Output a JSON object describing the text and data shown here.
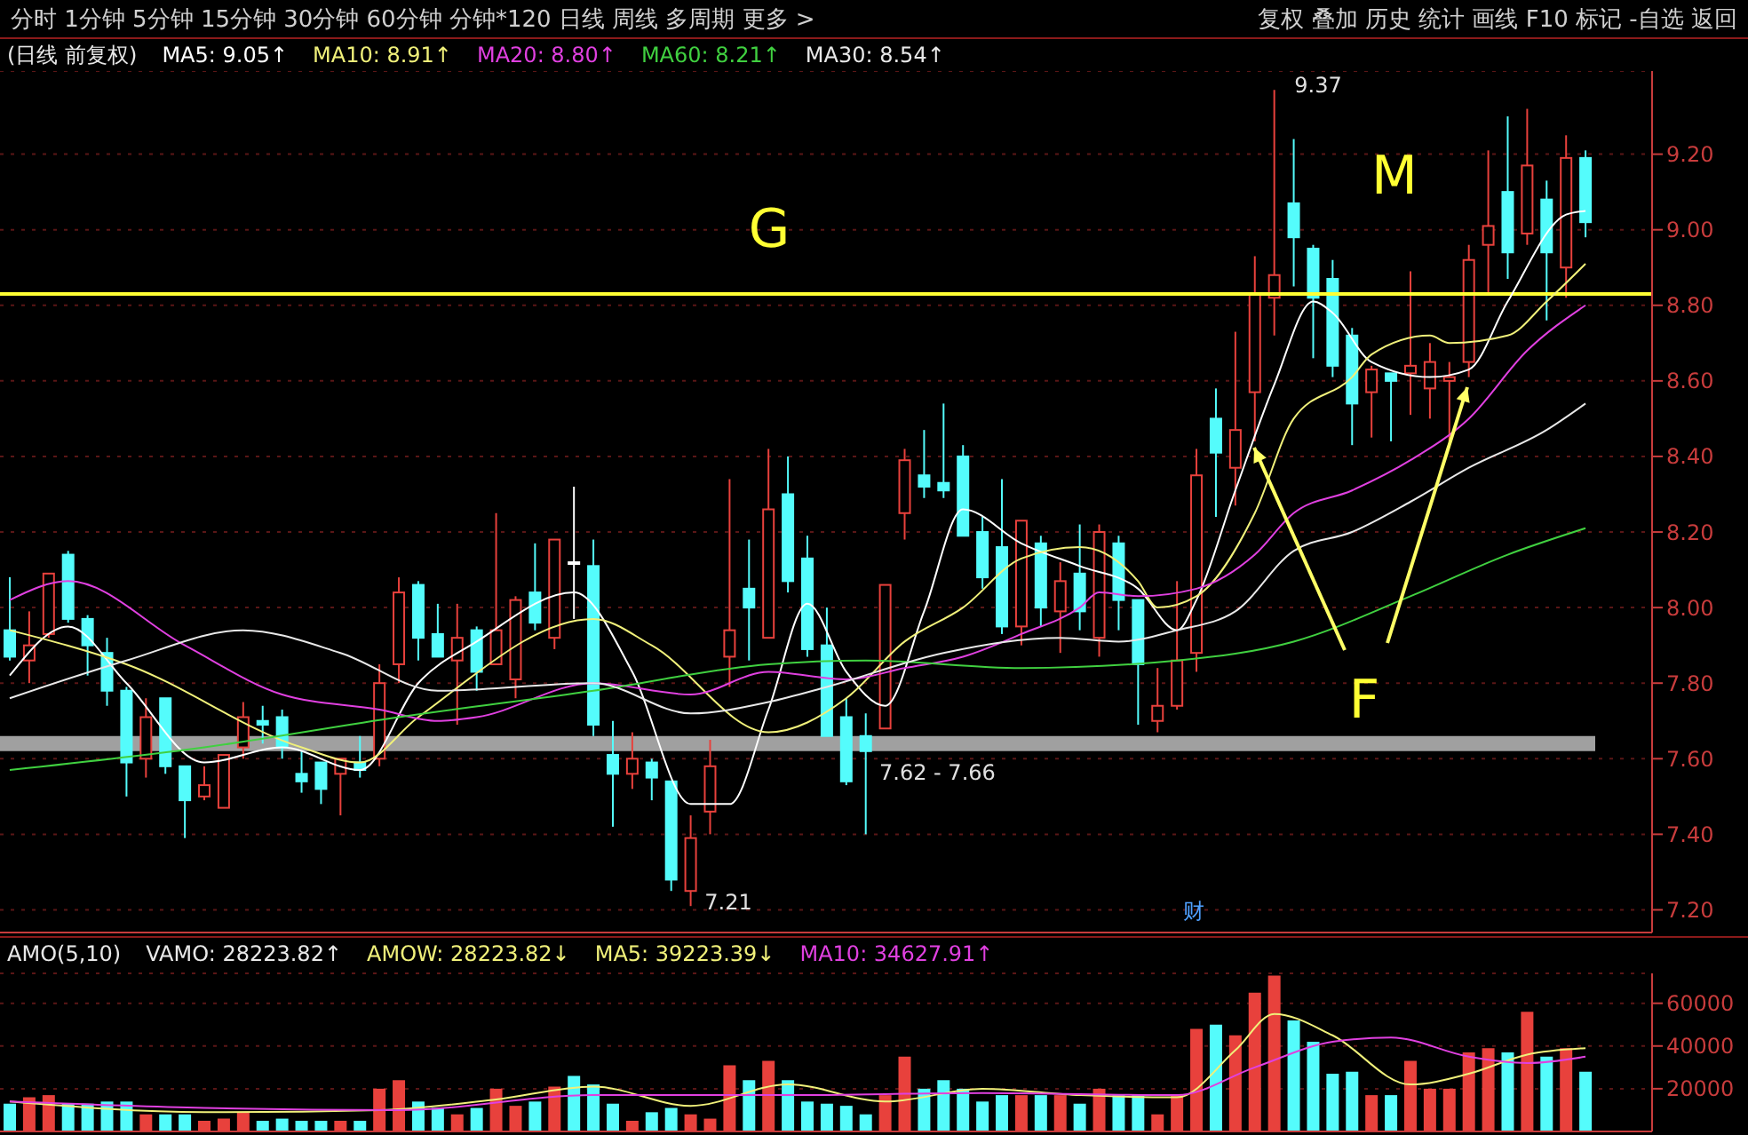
{
  "chart_data": [
    {
      "type": "candlestick",
      "title": "(日线 前复权)",
      "legend": "top left",
      "grid": "y",
      "tick_labels": "y",
      "marker": "none",
      "line_style": "solid",
      "categories": [
        null,
        null,
        null,
        null,
        null,
        null,
        null,
        null,
        null,
        null,
        null,
        null,
        null,
        null,
        null,
        null,
        null,
        null,
        null,
        null,
        null,
        null,
        null,
        null,
        null,
        null,
        null,
        null,
        null,
        null,
        null,
        null,
        null,
        null,
        null,
        null,
        null,
        null,
        null,
        null,
        null,
        null,
        null,
        null,
        null,
        null,
        null,
        null,
        null,
        null,
        null,
        null,
        null,
        null,
        null,
        null,
        null,
        null,
        null,
        null,
        null,
        null,
        null,
        null,
        null,
        null,
        null,
        null,
        null,
        null,
        null,
        null,
        null,
        null,
        null,
        null,
        null,
        null,
        null,
        null,
        null,
        null
      ],
      "ylim": [
        7.14,
        9.42
      ],
      "yticks": [
        {
          "value": 7.2,
          "label": "7.20"
        },
        {
          "value": 7.4,
          "label": "7.40"
        },
        {
          "value": 7.6,
          "label": "7.60"
        },
        {
          "value": 7.8,
          "label": "7.80"
        },
        {
          "value": 8.0,
          "label": "8.00"
        },
        {
          "value": 8.2,
          "label": "8.20"
        },
        {
          "value": 8.4,
          "label": "8.40"
        },
        {
          "value": 8.6,
          "label": "8.60"
        },
        {
          "value": 8.8,
          "label": "8.80"
        },
        {
          "value": 9.0,
          "label": "9.00"
        },
        {
          "value": 9.2,
          "label": "9.20"
        }
      ],
      "colors": [
        "#54fcfc",
        "#e8413c",
        "#e8413c",
        "#54fcfc",
        "#54fcfc",
        "#54fcfc",
        "#54fcfc",
        "#e8413c",
        "#54fcfc",
        "#54fcfc",
        "#e8413c",
        "#e8413c",
        "#e8413c",
        "#54fcfc",
        "#54fcfc",
        "#54fcfc",
        "#54fcfc",
        "#e8413c",
        "#54fcfc",
        "#e8413c",
        "#e8413c",
        "#54fcfc",
        "#54fcfc",
        "#e8413c",
        "#54fcfc",
        "#e8413c",
        "#e8413c",
        "#54fcfc",
        "#e8413c",
        "#ffffff",
        "#54fcfc",
        "#54fcfc",
        "#e8413c",
        "#54fcfc",
        "#54fcfc",
        "#e8413c",
        "#e8413c",
        "#e8413c",
        "#54fcfc",
        "#e8413c",
        "#54fcfc",
        "#54fcfc",
        "#54fcfc",
        "#54fcfc",
        "#54fcfc",
        "#e8413c",
        "#e8413c",
        "#54fcfc",
        "#54fcfc",
        "#54fcfc",
        "#54fcfc",
        "#54fcfc",
        "#e8413c",
        "#54fcfc",
        "#e8413c",
        "#54fcfc",
        "#e8413c",
        "#54fcfc",
        "#54fcfc",
        "#e8413c",
        "#e8413c",
        "#e8413c",
        "#54fcfc",
        "#e8413c",
        "#e8413c",
        "#e8413c",
        "#54fcfc",
        "#54fcfc",
        "#54fcfc",
        "#54fcfc",
        "#e8413c",
        "#54fcfc",
        "#e8413c",
        "#e8413c",
        "#e8413c",
        "#e8413c",
        "#e8413c",
        "#54fcfc",
        "#e8413c",
        "#54fcfc",
        "#e8413c",
        "#54fcfc"
      ],
      "ohlc": [
        [
          7.94,
          8.08,
          7.86,
          7.87
        ],
        [
          7.86,
          7.99,
          7.8,
          7.9
        ],
        [
          7.93,
          8.09,
          7.92,
          8.09
        ],
        [
          8.14,
          8.15,
          7.96,
          7.97
        ],
        [
          7.97,
          7.98,
          7.82,
          7.9
        ],
        [
          7.88,
          7.92,
          7.74,
          7.78
        ],
        [
          7.78,
          7.79,
          7.5,
          7.59
        ],
        [
          7.6,
          7.76,
          7.55,
          7.71
        ],
        [
          7.76,
          7.76,
          7.56,
          7.58
        ],
        [
          7.58,
          7.58,
          7.39,
          7.49
        ],
        [
          7.5,
          7.58,
          7.49,
          7.53
        ],
        [
          7.47,
          7.61,
          7.47,
          7.61
        ],
        [
          7.63,
          7.75,
          7.6,
          7.71
        ],
        [
          7.7,
          7.74,
          7.64,
          7.69
        ],
        [
          7.71,
          7.73,
          7.6,
          7.63
        ],
        [
          7.56,
          7.62,
          7.51,
          7.54
        ],
        [
          7.59,
          7.59,
          7.48,
          7.52
        ],
        [
          7.56,
          7.6,
          7.45,
          7.6
        ],
        [
          7.59,
          7.66,
          7.55,
          7.57
        ],
        [
          7.6,
          7.85,
          7.58,
          7.8
        ],
        [
          7.85,
          8.08,
          7.8,
          8.04
        ],
        [
          8.06,
          8.07,
          7.86,
          7.92
        ],
        [
          7.93,
          8.01,
          7.87,
          7.87
        ],
        [
          7.86,
          8.01,
          7.69,
          7.92
        ],
        [
          7.94,
          7.95,
          7.78,
          7.83
        ],
        [
          7.85,
          8.25,
          7.85,
          7.94
        ],
        [
          7.81,
          8.03,
          7.76,
          8.02
        ],
        [
          8.04,
          8.17,
          7.94,
          7.96
        ],
        [
          7.92,
          8.18,
          7.89,
          8.18
        ],
        [
          8.12,
          8.32,
          7.97,
          8.12
        ],
        [
          8.11,
          8.18,
          7.66,
          7.69
        ],
        [
          7.61,
          7.7,
          7.42,
          7.56
        ],
        [
          7.56,
          7.67,
          7.52,
          7.6
        ],
        [
          7.59,
          7.6,
          7.49,
          7.55
        ],
        [
          7.54,
          7.54,
          7.25,
          7.28
        ],
        [
          7.25,
          7.45,
          7.21,
          7.39
        ],
        [
          7.46,
          7.65,
          7.4,
          7.58
        ],
        [
          7.87,
          8.34,
          7.79,
          7.94
        ],
        [
          8.05,
          8.18,
          7.86,
          8.0
        ],
        [
          7.92,
          8.42,
          7.92,
          8.26
        ],
        [
          8.3,
          8.4,
          8.04,
          8.07
        ],
        [
          8.13,
          8.19,
          7.87,
          7.89
        ],
        [
          7.9,
          8.0,
          7.66,
          7.66
        ],
        [
          7.71,
          7.76,
          7.53,
          7.54
        ],
        [
          7.66,
          7.72,
          7.4,
          7.62
        ],
        [
          7.68,
          8.06,
          7.68,
          8.06
        ],
        [
          8.25,
          8.42,
          8.18,
          8.39
        ],
        [
          8.35,
          8.47,
          8.29,
          8.32
        ],
        [
          8.33,
          8.54,
          8.29,
          8.31
        ],
        [
          8.4,
          8.43,
          8.19,
          8.19
        ],
        [
          8.2,
          8.24,
          8.05,
          8.08
        ],
        [
          8.16,
          8.34,
          7.93,
          7.95
        ],
        [
          7.95,
          8.23,
          7.9,
          8.23
        ],
        [
          8.17,
          8.19,
          7.95,
          8.0
        ],
        [
          7.99,
          8.12,
          7.88,
          8.07
        ],
        [
          8.09,
          8.22,
          7.94,
          7.99
        ],
        [
          7.92,
          8.22,
          7.87,
          8.2
        ],
        [
          8.17,
          8.19,
          7.94,
          8.02
        ],
        [
          8.02,
          8.02,
          7.69,
          7.85
        ],
        [
          7.7,
          7.84,
          7.67,
          7.74
        ],
        [
          7.74,
          8.07,
          7.73,
          7.86
        ],
        [
          7.88,
          8.42,
          7.83,
          8.35
        ],
        [
          8.5,
          8.58,
          8.24,
          8.41
        ],
        [
          8.37,
          8.73,
          8.27,
          8.47
        ],
        [
          8.57,
          8.93,
          8.44,
          8.83
        ],
        [
          8.82,
          9.37,
          8.72,
          8.88
        ],
        [
          9.07,
          9.24,
          8.85,
          8.98
        ],
        [
          8.95,
          8.96,
          8.66,
          8.82
        ],
        [
          8.87,
          8.92,
          8.61,
          8.64
        ],
        [
          8.72,
          8.74,
          8.43,
          8.54
        ],
        [
          8.57,
          8.64,
          8.45,
          8.63
        ],
        [
          8.62,
          8.62,
          8.44,
          8.6
        ],
        [
          8.62,
          8.89,
          8.51,
          8.64
        ],
        [
          8.58,
          8.7,
          8.5,
          8.65
        ],
        [
          8.6,
          8.65,
          8.44,
          8.61
        ],
        [
          8.65,
          8.96,
          8.61,
          8.92
        ],
        [
          8.96,
          9.21,
          8.83,
          9.01
        ],
        [
          9.1,
          9.3,
          8.87,
          8.94
        ],
        [
          8.99,
          9.32,
          8.96,
          9.17
        ],
        [
          9.08,
          9.13,
          8.76,
          8.94
        ],
        [
          8.9,
          9.25,
          8.82,
          9.19
        ],
        [
          9.19,
          9.21,
          8.98,
          9.02
        ]
      ],
      "series": [
        {
          "type": "line",
          "name": "MA5: 9.05↑",
          "color": "#ffffff",
          "values": [
            7.82,
            null,
            null,
            7.95,
            null,
            null,
            7.8,
            null,
            null,
            null,
            7.59,
            null,
            null,
            null,
            7.63,
            null,
            null,
            null,
            7.57,
            null,
            null,
            7.8,
            null,
            null,
            7.91,
            null,
            null,
            null,
            null,
            8.04,
            null,
            null,
            7.83,
            null,
            null,
            7.48,
            null,
            7.48,
            null,
            7.73,
            null,
            8.01,
            null,
            7.83,
            null,
            7.74,
            null,
            7.99,
            null,
            8.26,
            null,
            null,
            8.17,
            null,
            null,
            8.11,
            null,
            null,
            8.05,
            null,
            7.94,
            8.02,
            null,
            8.31,
            null,
            8.59,
            null,
            8.81,
            8.78,
            null,
            8.65,
            null,
            null,
            8.61,
            null,
            8.63,
            null,
            8.81,
            null,
            null,
            9.04,
            9.05
          ]
        },
        {
          "type": "line",
          "name": "MA10: 8.91↑",
          "color": "#f0f07a",
          "values": [
            7.94,
            null,
            null,
            null,
            null,
            null,
            7.85,
            null,
            null,
            null,
            null,
            null,
            null,
            null,
            null,
            7.63,
            null,
            null,
            7.59,
            null,
            null,
            7.71,
            null,
            null,
            null,
            null,
            null,
            null,
            null,
            null,
            7.97,
            null,
            null,
            7.9,
            null,
            null,
            null,
            null,
            null,
            7.67,
            null,
            null,
            null,
            7.76,
            null,
            null,
            7.91,
            null,
            null,
            8.0,
            null,
            null,
            8.13,
            null,
            null,
            8.16,
            null,
            null,
            8.07,
            8.0,
            null,
            8.03,
            null,
            null,
            8.25,
            null,
            8.5,
            null,
            null,
            8.61,
            8.67,
            null,
            null,
            8.72,
            8.7,
            null,
            null,
            8.72,
            null,
            8.81,
            null,
            8.91
          ]
        },
        {
          "type": "line",
          "name": "MA20: 8.80↑",
          "color": "#e040e0",
          "values": [
            8.02,
            null,
            null,
            8.07,
            null,
            null,
            null,
            null,
            null,
            7.9,
            null,
            null,
            null,
            null,
            7.77,
            null,
            null,
            null,
            null,
            7.73,
            null,
            null,
            7.7,
            null,
            7.71,
            null,
            null,
            null,
            null,
            null,
            7.8,
            null,
            null,
            null,
            null,
            7.77,
            null,
            null,
            null,
            7.83,
            null,
            null,
            null,
            7.81,
            null,
            null,
            7.84,
            null,
            null,
            7.87,
            null,
            null,
            7.93,
            null,
            null,
            8.0,
            8.04,
            null,
            8.03,
            null,
            null,
            8.05,
            null,
            null,
            8.14,
            null,
            8.25,
            null,
            null,
            8.31,
            null,
            null,
            8.39,
            null,
            null,
            8.5,
            null,
            null,
            8.68,
            null,
            null,
            8.8
          ]
        },
        {
          "type": "line",
          "name": "MA60: 8.21↑",
          "color": "#40d040",
          "values": [
            7.57,
            null,
            null,
            null,
            null,
            null,
            null,
            null,
            null,
            null,
            7.63,
            null,
            null,
            null,
            null,
            null,
            null,
            null,
            null,
            null,
            7.71,
            null,
            null,
            null,
            null,
            null,
            null,
            null,
            null,
            null,
            7.78,
            null,
            null,
            null,
            null,
            null,
            null,
            null,
            null,
            7.85,
            null,
            null,
            null,
            null,
            7.86,
            null,
            null,
            null,
            null,
            null,
            null,
            null,
            7.84,
            null,
            null,
            null,
            null,
            null,
            null,
            null,
            7.86,
            null,
            null,
            null,
            null,
            null,
            7.91,
            null,
            null,
            null,
            null,
            null,
            8.03,
            null,
            null,
            null,
            null,
            8.14,
            null,
            null,
            null,
            8.21
          ]
        },
        {
          "type": "line",
          "name": "MA30: 8.54↑",
          "color": "#e8e8e8",
          "values": [
            7.76,
            null,
            null,
            null,
            null,
            null,
            7.86,
            null,
            null,
            null,
            null,
            null,
            7.94,
            null,
            null,
            null,
            null,
            7.88,
            null,
            null,
            null,
            null,
            7.78,
            null,
            null,
            null,
            null,
            null,
            null,
            null,
            7.8,
            null,
            null,
            null,
            null,
            7.72,
            null,
            null,
            null,
            7.75,
            null,
            null,
            7.79,
            null,
            null,
            null,
            null,
            null,
            7.88,
            null,
            null,
            null,
            null,
            null,
            7.92,
            null,
            null,
            7.91,
            null,
            null,
            7.94,
            null,
            null,
            7.99,
            null,
            null,
            8.15,
            null,
            null,
            8.2,
            null,
            null,
            8.28,
            null,
            null,
            8.37,
            null,
            null,
            null,
            8.47,
            null,
            8.54
          ]
        }
      ],
      "ref_lines": [
        {
          "axis": "y",
          "value": 8.83,
          "color": "#ffff33"
        }
      ],
      "bands": [
        {
          "axis": "y",
          "from": 7.62,
          "to": 7.66,
          "label": "7.62 - 7.66",
          "color": "#a0a0a0"
        }
      ],
      "annotations": [
        "分时 1分钟 5分钟 15分钟 30分钟 60分钟 分钟*120 日线 周线 多周期 更多 >",
        "复权 叠加 历史 统计 画线 F10 标记 -自选 返回",
        "G",
        "M",
        "F",
        "财",
        "9.37",
        "7.21"
      ]
    },
    {
      "type": "bar",
      "title": "AMO(5,10)",
      "legend": "top left",
      "grid": "y",
      "tick_labels": "y",
      "marker": "none",
      "categories": [
        null,
        null,
        null,
        null,
        null,
        null,
        null,
        null,
        null,
        null,
        null,
        null,
        null,
        null,
        null,
        null,
        null,
        null,
        null,
        null,
        null,
        null,
        null,
        null,
        null,
        null,
        null,
        null,
        null,
        null,
        null,
        null,
        null,
        null,
        null,
        null,
        null,
        null,
        null,
        null,
        null,
        null,
        null,
        null,
        null,
        null,
        null,
        null,
        null,
        null,
        null,
        null,
        null,
        null,
        null,
        null,
        null,
        null,
        null,
        null,
        null,
        null,
        null,
        null,
        null,
        null,
        null,
        null,
        null,
        null,
        null,
        null,
        null,
        null,
        null,
        null,
        null,
        null,
        null,
        null,
        null,
        null
      ],
      "ylim": [
        0,
        74000
      ],
      "yticks": [
        20000,
        40000,
        60000
      ],
      "series": [
        {
          "values": [
            13000,
            16000,
            17000,
            13000,
            13000,
            14000,
            14000,
            8000,
            8000,
            8000,
            5000,
            6000,
            9000,
            5000,
            6000,
            5000,
            5000,
            5000,
            5000,
            20000,
            24000,
            14000,
            11000,
            8000,
            11000,
            20000,
            12000,
            14000,
            21000,
            26000,
            22000,
            13000,
            5000,
            9000,
            11000,
            8000,
            6000,
            31000,
            24000,
            33000,
            24000,
            14000,
            13000,
            12000,
            8000,
            17000,
            35000,
            20000,
            24000,
            20000,
            14000,
            17000,
            17000,
            17000,
            17000,
            13000,
            20000,
            17000,
            17000,
            8000,
            17000,
            48000,
            50000,
            45000,
            65000,
            73000,
            52000,
            42000,
            27000,
            28000,
            17000,
            17000,
            33000,
            20000,
            20000,
            37000,
            39000,
            37000,
            56000,
            35000,
            39000,
            28000
          ],
          "colors": [
            "#54fcfc",
            "#e8413c",
            "#e8413c",
            "#54fcfc",
            "#54fcfc",
            "#54fcfc",
            "#54fcfc",
            "#e8413c",
            "#54fcfc",
            "#54fcfc",
            "#e8413c",
            "#e8413c",
            "#e8413c",
            "#54fcfc",
            "#54fcfc",
            "#54fcfc",
            "#54fcfc",
            "#e8413c",
            "#54fcfc",
            "#e8413c",
            "#e8413c",
            "#54fcfc",
            "#54fcfc",
            "#e8413c",
            "#54fcfc",
            "#e8413c",
            "#e8413c",
            "#54fcfc",
            "#e8413c",
            "#54fcfc",
            "#54fcfc",
            "#54fcfc",
            "#e8413c",
            "#54fcfc",
            "#54fcfc",
            "#e8413c",
            "#e8413c",
            "#e8413c",
            "#54fcfc",
            "#e8413c",
            "#54fcfc",
            "#54fcfc",
            "#54fcfc",
            "#54fcfc",
            "#54fcfc",
            "#e8413c",
            "#e8413c",
            "#54fcfc",
            "#54fcfc",
            "#54fcfc",
            "#54fcfc",
            "#54fcfc",
            "#e8413c",
            "#54fcfc",
            "#e8413c",
            "#54fcfc",
            "#e8413c",
            "#54fcfc",
            "#54fcfc",
            "#e8413c",
            "#e8413c",
            "#e8413c",
            "#54fcfc",
            "#e8413c",
            "#e8413c",
            "#e8413c",
            "#54fcfc",
            "#54fcfc",
            "#54fcfc",
            "#54fcfc",
            "#e8413c",
            "#54fcfc",
            "#e8413c",
            "#e8413c",
            "#e8413c",
            "#e8413c",
            "#e8413c",
            "#54fcfc",
            "#e8413c",
            "#54fcfc",
            "#e8413c",
            "#54fcfc"
          ]
        },
        {
          "type": "line",
          "name": "MA5: 39223.39↓",
          "color": "#f0f07a",
          "values": [
            14000,
            null,
            null,
            null,
            null,
            null,
            null,
            null,
            null,
            null,
            9000,
            null,
            null,
            null,
            null,
            null,
            null,
            null,
            null,
            10000,
            null,
            null,
            null,
            null,
            null,
            15000,
            null,
            null,
            null,
            null,
            21000,
            null,
            null,
            null,
            null,
            12000,
            null,
            null,
            null,
            null,
            22000,
            null,
            null,
            null,
            null,
            14000,
            null,
            null,
            null,
            null,
            20000,
            null,
            null,
            null,
            null,
            17000,
            null,
            null,
            null,
            null,
            16000,
            null,
            null,
            38000,
            null,
            55000,
            null,
            null,
            45000,
            null,
            null,
            null,
            22000,
            null,
            null,
            27000,
            null,
            null,
            36000,
            null,
            null,
            39000
          ]
        },
        {
          "type": "line",
          "name": "MA10: 34627.91↑",
          "color": "#e040e0",
          "values": [
            14000,
            null,
            null,
            null,
            null,
            null,
            null,
            null,
            null,
            null,
            11000,
            null,
            null,
            null,
            null,
            null,
            null,
            null,
            null,
            null,
            10000,
            null,
            null,
            null,
            null,
            null,
            null,
            null,
            null,
            null,
            17000,
            null,
            null,
            null,
            null,
            null,
            null,
            null,
            null,
            null,
            17000,
            null,
            null,
            null,
            null,
            null,
            null,
            null,
            null,
            null,
            18000,
            null,
            null,
            null,
            null,
            null,
            null,
            null,
            null,
            null,
            17000,
            null,
            null,
            null,
            30000,
            null,
            null,
            null,
            42000,
            null,
            null,
            44000,
            null,
            null,
            null,
            35000,
            null,
            null,
            32000,
            null,
            null,
            35000
          ]
        }
      ],
      "annotations": [
        "VAMO: 28223.82↑",
        "AMOW: 28223.82↓"
      ]
    }
  ]
}
